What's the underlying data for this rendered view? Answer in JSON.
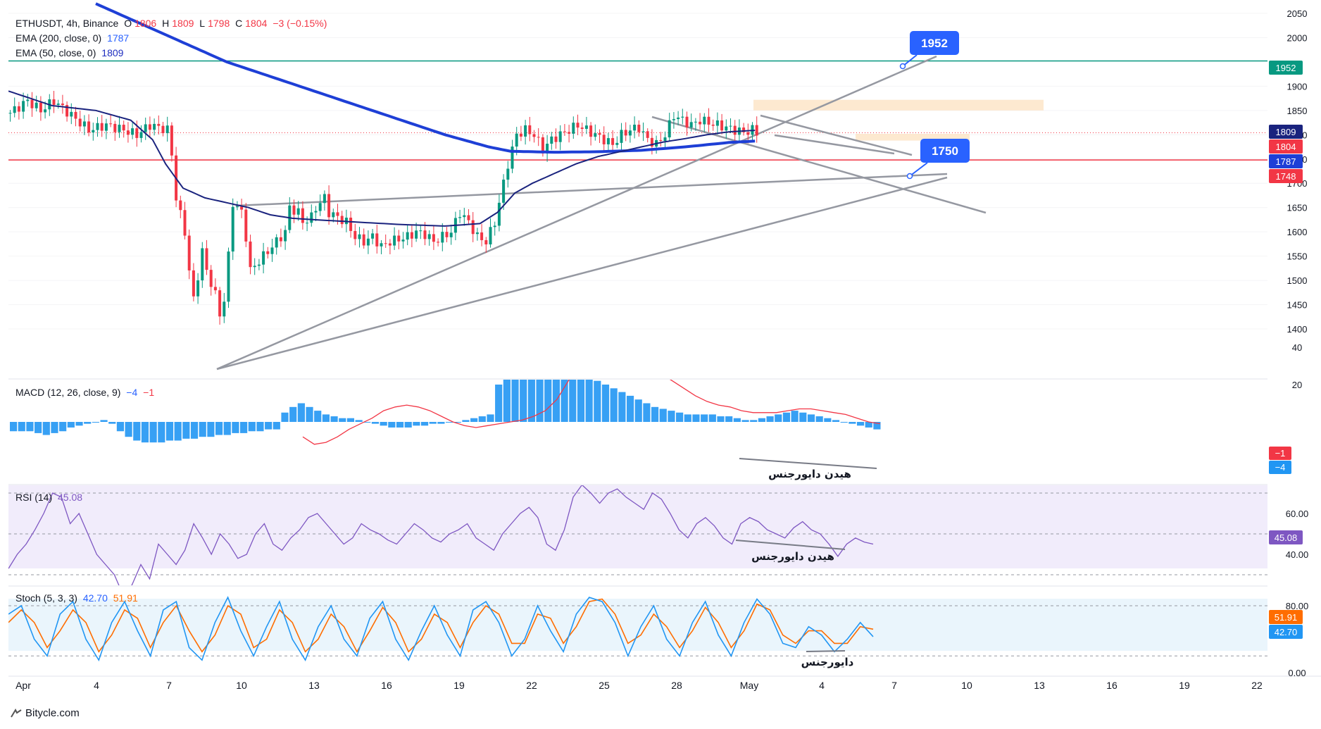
{
  "header": {
    "symbol": "ETHUSDT, 4h, Binance",
    "o_label": "O",
    "o_value": "1806",
    "h_label": "H",
    "h_value": "1809",
    "l_label": "L",
    "l_value": "1798",
    "c_label": "C",
    "c_value": "1804",
    "change": "−3 (−0.15%)"
  },
  "ema200": {
    "label": "EMA (200, close, 0)",
    "value": "1787",
    "color": "#1e3fd6"
  },
  "ema50": {
    "label": "EMA (50, close, 0)",
    "value": "1809",
    "color": "#1a237e"
  },
  "macd": {
    "label": "MACD (12, 26, close, 9)",
    "v1": "−4",
    "v2": "−1",
    "note": "هیدن دایورجنس"
  },
  "rsi": {
    "label": "RSI (14)",
    "value": "45.08",
    "note": "هیدن دایورجنس"
  },
  "stoch": {
    "label": "Stoch (5, 3, 3)",
    "k": "42.70",
    "d": "51.91",
    "note": "دایورجنس"
  },
  "watermark": "Bitycle.com",
  "chart_data": {
    "type": "candlestick",
    "title": "ETHUSDT, 4h, Binance",
    "price_axis": {
      "ticks": [
        1400,
        1450,
        1500,
        1550,
        1600,
        1650,
        1700,
        1750,
        1800,
        1850,
        1900,
        1950,
        2000,
        2050
      ],
      "range": [
        1380,
        2055
      ]
    },
    "price_badges": [
      {
        "value": "1952",
        "color": "#089981"
      },
      {
        "value": "1809",
        "color": "#1a237e"
      },
      {
        "value": "1804",
        "color": "#f23645"
      },
      {
        "value": "1787",
        "color": "#1e3fd6"
      },
      {
        "value": "1748",
        "color": "#f23645"
      }
    ],
    "callouts": [
      {
        "text": "1952"
      },
      {
        "text": "1750"
      }
    ],
    "horizontal_levels": [
      {
        "value": 1952,
        "color": "#089981"
      },
      {
        "value": 1748,
        "color": "#f23645"
      }
    ],
    "x_axis_labels": [
      "Apr",
      "4",
      "7",
      "10",
      "13",
      "16",
      "19",
      "22",
      "25",
      "28",
      "May",
      "4",
      "7",
      "10",
      "13",
      "16",
      "19",
      "22"
    ],
    "close_path": [
      [
        0,
        1845
      ],
      [
        4,
        1870
      ],
      [
        7,
        1850
      ],
      [
        10,
        1870
      ],
      [
        14,
        1840
      ],
      [
        18,
        1810
      ],
      [
        22,
        1820
      ],
      [
        26,
        1810
      ],
      [
        29,
        1800
      ],
      [
        32,
        1820
      ],
      [
        36,
        1810
      ],
      [
        37,
        1760
      ],
      [
        38,
        1670
      ],
      [
        40,
        1600
      ],
      [
        41,
        1520
      ],
      [
        42,
        1460
      ],
      [
        43,
        1510
      ],
      [
        44,
        1560
      ],
      [
        45,
        1520
      ],
      [
        47,
        1470
      ],
      [
        48,
        1430
      ],
      [
        49,
        1460
      ],
      [
        50,
        1550
      ],
      [
        51,
        1660
      ],
      [
        53,
        1640
      ],
      [
        54,
        1590
      ],
      [
        55,
        1520
      ],
      [
        57,
        1540
      ],
      [
        59,
        1560
      ],
      [
        61,
        1580
      ],
      [
        63,
        1600
      ],
      [
        64,
        1650
      ],
      [
        66,
        1640
      ],
      [
        67,
        1620
      ],
      [
        69,
        1630
      ],
      [
        70,
        1650
      ],
      [
        72,
        1670
      ],
      [
        73,
        1640
      ],
      [
        75,
        1630
      ],
      [
        77,
        1620
      ],
      [
        79,
        1590
      ],
      [
        81,
        1580
      ],
      [
        83,
        1590
      ],
      [
        85,
        1570
      ],
      [
        87,
        1580
      ],
      [
        89,
        1585
      ],
      [
        91,
        1590
      ],
      [
        93,
        1600
      ],
      [
        95,
        1595
      ],
      [
        97,
        1580
      ],
      [
        99,
        1590
      ],
      [
        101,
        1600
      ],
      [
        103,
        1640
      ],
      [
        105,
        1620
      ],
      [
        107,
        1590
      ],
      [
        109,
        1580
      ],
      [
        111,
        1620
      ],
      [
        113,
        1700
      ],
      [
        114,
        1740
      ],
      [
        116,
        1800
      ],
      [
        118,
        1810
      ],
      [
        120,
        1800
      ],
      [
        122,
        1770
      ],
      [
        124,
        1790
      ],
      [
        126,
        1800
      ],
      [
        128,
        1810
      ],
      [
        130,
        1820
      ],
      [
        132,
        1810
      ],
      [
        134,
        1800
      ],
      [
        136,
        1790
      ],
      [
        138,
        1780
      ],
      [
        140,
        1800
      ],
      [
        142,
        1810
      ],
      [
        144,
        1815
      ],
      [
        146,
        1790
      ],
      [
        148,
        1780
      ],
      [
        150,
        1800
      ],
      [
        152,
        1840
      ],
      [
        154,
        1830
      ],
      [
        156,
        1820
      ],
      [
        158,
        1830
      ],
      [
        160,
        1825
      ],
      [
        162,
        1820
      ],
      [
        164,
        1815
      ],
      [
        166,
        1810
      ],
      [
        168,
        1805
      ],
      [
        170,
        1810
      ],
      [
        171,
        1804
      ]
    ],
    "ema200_path": [
      [
        20,
        2070
      ],
      [
        30,
        2030
      ],
      [
        40,
        1990
      ],
      [
        50,
        1950
      ],
      [
        60,
        1920
      ],
      [
        70,
        1890
      ],
      [
        80,
        1860
      ],
      [
        90,
        1830
      ],
      [
        100,
        1800
      ],
      [
        110,
        1775
      ],
      [
        115,
        1766
      ],
      [
        125,
        1764
      ],
      [
        135,
        1765
      ],
      [
        145,
        1768
      ],
      [
        155,
        1775
      ],
      [
        165,
        1784
      ],
      [
        171,
        1787
      ]
    ],
    "ema50_path": [
      [
        0,
        1890
      ],
      [
        10,
        1860
      ],
      [
        20,
        1850
      ],
      [
        28,
        1830
      ],
      [
        33,
        1790
      ],
      [
        36,
        1740
      ],
      [
        40,
        1690
      ],
      [
        45,
        1670
      ],
      [
        50,
        1660
      ],
      [
        55,
        1650
      ],
      [
        60,
        1635
      ],
      [
        65,
        1628
      ],
      [
        70,
        1625
      ],
      [
        80,
        1620
      ],
      [
        90,
        1615
      ],
      [
        100,
        1612
      ],
      [
        108,
        1617
      ],
      [
        112,
        1640
      ],
      [
        116,
        1680
      ],
      [
        120,
        1700
      ],
      [
        125,
        1720
      ],
      [
        130,
        1740
      ],
      [
        135,
        1755
      ],
      [
        140,
        1765
      ],
      [
        145,
        1775
      ],
      [
        150,
        1785
      ],
      [
        155,
        1792
      ],
      [
        160,
        1800
      ],
      [
        165,
        1806
      ],
      [
        171,
        1809
      ]
    ],
    "macd_axis": {
      "ticks": [
        20,
        40
      ],
      "range": [
        -5,
        41
      ]
    },
    "macd_hist": [
      -5,
      -5,
      -5,
      -6,
      -7,
      -6,
      -5,
      -3,
      -2,
      -1,
      0,
      1,
      -1,
      -5,
      -8,
      -10,
      -11,
      -11,
      -11,
      -10,
      -10,
      -9,
      -9,
      -8,
      -8,
      -7,
      -7,
      -6,
      -6,
      -5,
      -5,
      -4,
      -4,
      5,
      8,
      10,
      8,
      6,
      4,
      3,
      2,
      2,
      1,
      0,
      -1,
      -2,
      -3,
      -3,
      -3,
      -2,
      -2,
      -1,
      -1,
      0,
      0,
      1,
      2,
      3,
      4,
      20,
      35,
      41,
      40,
      38,
      36,
      34,
      32,
      30,
      28,
      26,
      24,
      22,
      20,
      18,
      16,
      14,
      12,
      10,
      8,
      7,
      6,
      5,
      4,
      4,
      4,
      4,
      3,
      3,
      2,
      1,
      1,
      2,
      3,
      4,
      5,
      6,
      5,
      4,
      3,
      2,
      1,
      0,
      -1,
      -2,
      -3,
      -4
    ],
    "macd_signal": [
      -8,
      -12,
      -11,
      -8,
      -4,
      -1,
      2,
      6,
      8,
      9,
      8,
      6,
      3,
      0,
      -2,
      -3,
      -2,
      -1,
      0,
      1,
      3,
      6,
      12,
      22,
      33,
      40,
      40,
      38,
      35,
      32,
      29,
      26,
      22,
      18,
      14,
      11,
      9,
      8,
      6,
      5,
      5,
      5,
      6,
      7,
      7,
      6,
      5,
      4,
      2,
      0,
      -1
    ],
    "rsi_axis": {
      "ticks": [
        40,
        60
      ],
      "bands": [
        30,
        50,
        70
      ],
      "range": [
        27,
        73
      ]
    },
    "rsi": [
      33,
      40,
      45,
      52,
      60,
      70,
      68,
      55,
      60,
      50,
      40,
      35,
      30,
      20,
      25,
      35,
      28,
      45,
      40,
      35,
      42,
      55,
      48,
      40,
      50,
      45,
      38,
      40,
      50,
      55,
      45,
      42,
      48,
      52,
      58,
      60,
      55,
      50,
      45,
      48,
      55,
      52,
      50,
      47,
      45,
      50,
      55,
      52,
      48,
      46,
      50,
      52,
      55,
      48,
      45,
      42,
      50,
      55,
      60,
      63,
      58,
      45,
      42,
      52,
      68,
      74,
      70,
      65,
      70,
      72,
      68,
      65,
      62,
      70,
      67,
      60,
      52,
      48,
      55,
      58,
      54,
      48,
      45,
      55,
      58,
      56,
      52,
      50,
      48,
      53,
      56,
      52,
      50,
      45,
      39,
      45,
      48,
      46,
      45
    ],
    "stoch_axis": {
      "ticks": [
        0,
        80
      ],
      "bands": [
        20,
        80
      ],
      "range": [
        -4,
        110
      ]
    },
    "stoch_k": [
      70,
      80,
      40,
      20,
      70,
      85,
      40,
      15,
      60,
      85,
      50,
      20,
      75,
      85,
      30,
      15,
      60,
      90,
      50,
      20,
      55,
      85,
      40,
      15,
      55,
      80,
      40,
      20,
      65,
      85,
      40,
      15,
      50,
      80,
      45,
      20,
      75,
      85,
      60,
      20,
      40,
      80,
      50,
      25,
      70,
      90,
      85,
      60,
      20,
      55,
      80,
      40,
      20,
      60,
      85,
      45,
      20,
      60,
      88,
      70,
      35,
      30,
      55,
      45,
      25,
      40,
      60,
      43
    ],
    "stoch_d": [
      60,
      75,
      60,
      30,
      50,
      75,
      60,
      25,
      45,
      75,
      65,
      30,
      60,
      80,
      50,
      25,
      45,
      80,
      70,
      30,
      40,
      75,
      60,
      25,
      40,
      70,
      55,
      25,
      50,
      78,
      60,
      25,
      40,
      70,
      60,
      30,
      60,
      80,
      70,
      35,
      35,
      70,
      65,
      35,
      55,
      85,
      88,
      70,
      35,
      45,
      70,
      55,
      30,
      50,
      78,
      60,
      30,
      50,
      82,
      75,
      45,
      35,
      50,
      50,
      35,
      35,
      55,
      52
    ]
  }
}
